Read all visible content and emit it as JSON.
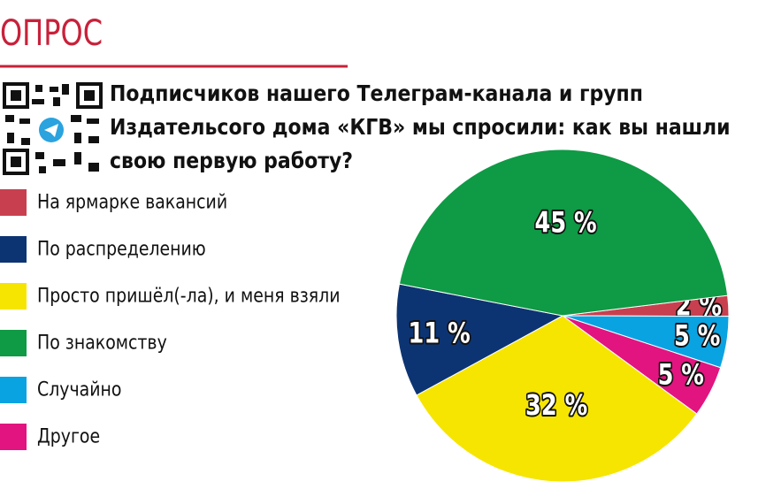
{
  "header": "ОПРОС",
  "chart_data": {
    "type": "pie",
    "question": [
      "Подписчиков нашего Телеграм-канала и групп",
      "Издательсого дома «КГВ» мы спросили: как вы нашли",
      "свою первую работу?"
    ],
    "categories": [
      "На ярмарке вакансий",
      "По распределению",
      "Просто пришёл(-ла), и меня взяли",
      "По знакомству",
      "Случайно",
      "Другое"
    ],
    "values": [
      2,
      11,
      32,
      45,
      5,
      5
    ],
    "value_labels": [
      "2 %",
      "11 %",
      "32 %",
      "45 %",
      "5 %",
      "5 %"
    ],
    "colors": [
      "#c8404f",
      "#0d3472",
      "#f6e500",
      "#0f9a45",
      "#0aa3e2",
      "#e2147f"
    ]
  }
}
